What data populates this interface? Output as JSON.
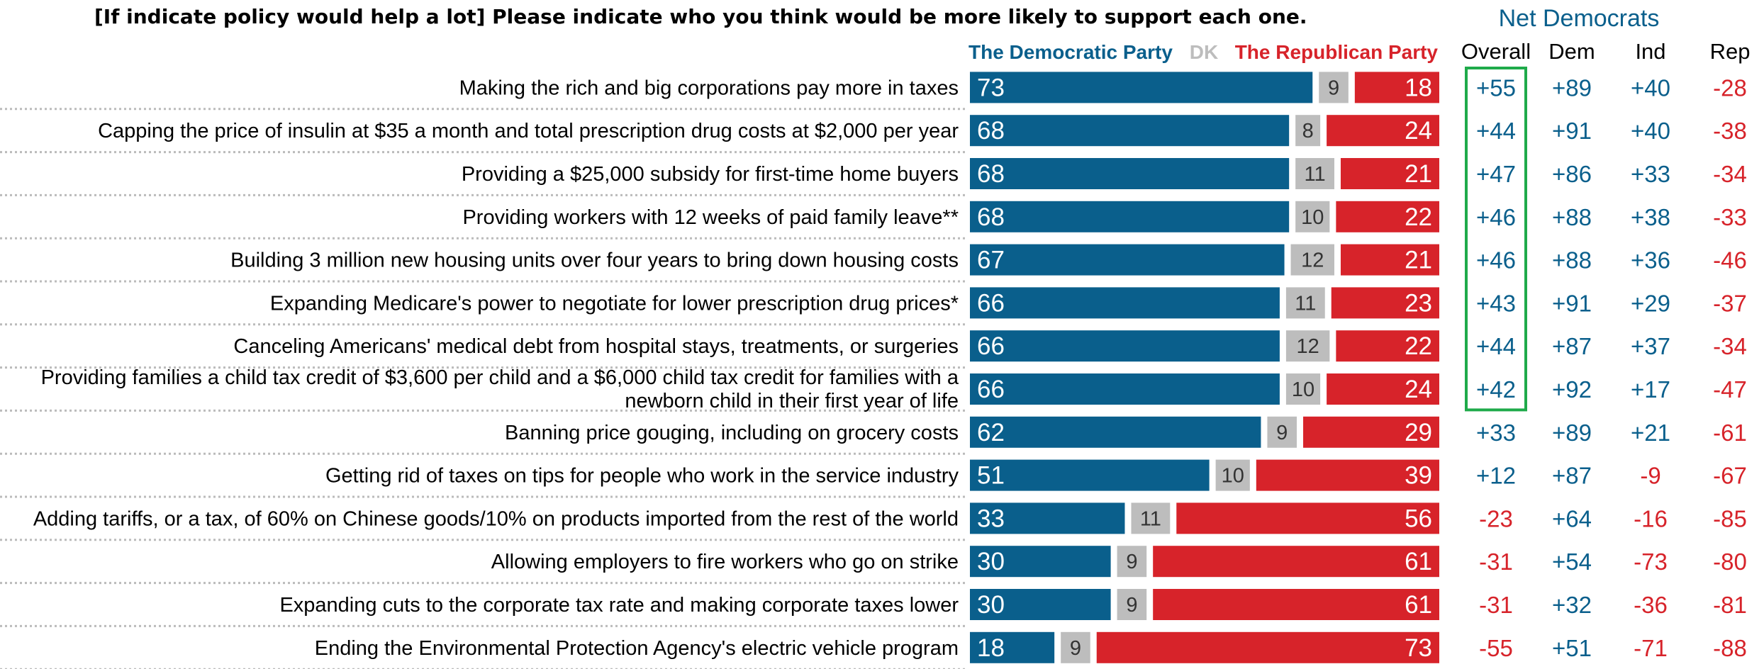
{
  "chart_data": {
    "type": "bar",
    "stacked": true,
    "orientation": "horizontal",
    "title": "[If indicate policy would help a lot] Please indicate who you think would be more likely to support each one.",
    "legend": [
      "The Democratic Party",
      "DK",
      "The Republican Party"
    ],
    "net_title": "Net Democrats",
    "net_columns": [
      "Overall",
      "Dem",
      "Ind",
      "Rep"
    ],
    "colors": {
      "democratic": "#0a5f8c",
      "dk": "#bdbdbd",
      "republican": "#d7232a",
      "net_positive": "#0a5f8c",
      "net_negative": "#d7232a",
      "highlight_box": "#1faa4a"
    },
    "highlight_rows": 8,
    "categories": [
      [
        "Making the rich and big corporations pay more in taxes"
      ],
      [
        "Capping the price of insulin at $35 a month and total prescription drug costs at $2,000 per year"
      ],
      [
        "Providing a $25,000 subsidy for first-time home buyers"
      ],
      [
        "Providing workers with 12 weeks of paid family leave**"
      ],
      [
        "Building 3 million new housing units over four years to bring down housing costs"
      ],
      [
        "Expanding Medicare's power to negotiate for lower prescription drug prices*"
      ],
      [
        "Canceling Americans' medical debt from hospital stays, treatments, or surgeries"
      ],
      [
        "Providing families a child tax credit of $3,600 per child and a $6,000 child tax credit for families with a",
        "newborn child in their first year of life"
      ],
      [
        "Banning price gouging, including on grocery costs"
      ],
      [
        "Getting rid of taxes on tips for people who work in the service industry"
      ],
      [
        "Adding tariffs, or a tax, of 60% on Chinese goods/10% on products imported from the rest of the world"
      ],
      [
        "Allowing employers to fire workers who go on strike"
      ],
      [
        "Expanding cuts to the corporate tax rate and making corporate taxes lower"
      ],
      [
        "Ending the Environmental Protection Agency's electric vehicle program"
      ]
    ],
    "series": [
      {
        "name": "The Democratic Party",
        "values": [
          73,
          68,
          68,
          68,
          67,
          66,
          66,
          66,
          62,
          51,
          33,
          30,
          30,
          18
        ]
      },
      {
        "name": "DK",
        "values": [
          9,
          8,
          11,
          10,
          12,
          11,
          12,
          10,
          9,
          10,
          11,
          9,
          9,
          9
        ]
      },
      {
        "name": "The Republican Party",
        "values": [
          18,
          24,
          21,
          22,
          21,
          23,
          22,
          24,
          29,
          39,
          56,
          61,
          61,
          73
        ]
      }
    ],
    "net": {
      "Overall": [
        "+55",
        "+44",
        "+47",
        "+46",
        "+46",
        "+43",
        "+44",
        "+42",
        "+33",
        "+12",
        "-23",
        "-31",
        "-31",
        "-55"
      ],
      "Dem": [
        "+89",
        "+91",
        "+86",
        "+88",
        "+88",
        "+91",
        "+87",
        "+92",
        "+89",
        "+87",
        "+64",
        "+54",
        "+32",
        "+51"
      ],
      "Ind": [
        "+40",
        "+40",
        "+33",
        "+38",
        "+36",
        "+29",
        "+37",
        "+17",
        "+21",
        "-9",
        "-16",
        "-73",
        "-36",
        "-71"
      ],
      "Rep": [
        "-28",
        "-38",
        "-34",
        "-33",
        "-46",
        "-37",
        "-34",
        "-47",
        "-61",
        "-67",
        "-85",
        "-80",
        "-81",
        "-88"
      ]
    }
  }
}
